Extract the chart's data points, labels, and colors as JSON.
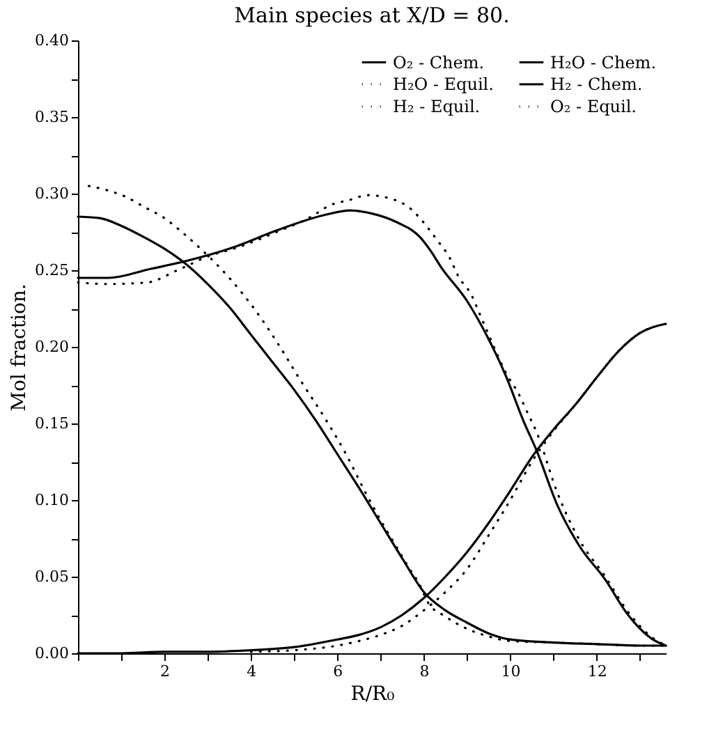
{
  "chart_data": {
    "type": "line",
    "title": "Main species at X/D = 80.",
    "xlabel": "R/R₀",
    "ylabel": "Mol fraction.",
    "xlim": [
      0,
      13.6
    ],
    "ylim": [
      0,
      0.4
    ],
    "xticks": [
      {
        "value": 0,
        "label": null
      },
      {
        "value": 1,
        "label": null
      },
      2,
      {
        "value": 3,
        "label": null
      },
      4,
      {
        "value": 5,
        "label": null
      },
      6,
      {
        "value": 7,
        "label": null
      },
      8,
      {
        "value": 9,
        "label": null
      },
      10,
      {
        "value": 11,
        "label": null
      },
      12,
      {
        "value": 13,
        "label": null
      }
    ],
    "yticks": [
      {
        "value": 0,
        "label": "0.00"
      },
      {
        "value": 0.025,
        "label": null
      },
      {
        "value": 0.05,
        "label": "0.05"
      },
      {
        "value": 0.075,
        "label": null
      },
      {
        "value": 0.1,
        "label": "0.10"
      },
      {
        "value": 0.125,
        "label": null
      },
      {
        "value": 0.15,
        "label": "0.15"
      },
      {
        "value": 0.175,
        "label": null
      },
      {
        "value": 0.2,
        "label": "0.20"
      },
      {
        "value": 0.225,
        "label": null
      },
      {
        "value": 0.25,
        "label": "0.25"
      },
      {
        "value": 0.275,
        "label": null
      },
      {
        "value": 0.3,
        "label": "0.30"
      },
      {
        "value": 0.325,
        "label": null
      },
      {
        "value": 0.35,
        "label": "0.35"
      },
      {
        "value": 0.375,
        "label": null
      },
      {
        "value": 0.4,
        "label": "0.40"
      }
    ],
    "grid": false,
    "legend": "top right",
    "series": [
      {
        "name": "O₂  - Chem.",
        "color": "#000000",
        "line_style": "solid",
        "x": [
          0,
          1,
          2,
          3,
          4,
          5,
          6,
          6.5,
          7,
          7.5,
          8,
          8.5,
          9,
          9.5,
          10,
          10.5,
          11,
          11.5,
          12,
          12.5,
          13,
          13.6
        ],
        "values": [
          0,
          0,
          0.001,
          0.001,
          0.002,
          0.004,
          0.009,
          0.012,
          0.017,
          0.025,
          0.036,
          0.05,
          0.066,
          0.085,
          0.106,
          0.128,
          0.146,
          0.162,
          0.18,
          0.197,
          0.209,
          0.215
        ]
      },
      {
        "name": "H₂O - Equil.",
        "color": "#000000",
        "line_style": "dotted",
        "x": [
          0,
          0.7,
          1.6,
          2.3,
          3.1,
          3.6,
          4.6,
          5.4,
          5.8,
          6.3,
          6.7,
          7.2,
          7.7,
          8,
          8.3,
          8.6,
          8.8,
          9.1,
          9.3,
          9.5,
          9.7,
          9.9,
          10.2,
          10.4,
          10.6,
          11.1,
          11.6,
          12.2,
          12.7,
          13.3,
          13.6
        ],
        "values": [
          0.242,
          0.241,
          0.242,
          0.25,
          0.26,
          0.264,
          0.275,
          0.285,
          0.292,
          0.296,
          0.299,
          0.297,
          0.29,
          0.281,
          0.27,
          0.258,
          0.246,
          0.234,
          0.221,
          0.208,
          0.195,
          0.183,
          0.169,
          0.157,
          0.145,
          0.104,
          0.074,
          0.05,
          0.028,
          0.01,
          0.005
        ]
      },
      {
        "name": "H₂  - Equil.",
        "color": "#000000",
        "line_style": "dotted",
        "x": [
          0.25,
          0.7,
          1.1,
          1.55,
          2,
          2.4,
          2.8,
          3.5,
          4.1,
          4.65,
          5.15,
          5.7,
          6.2,
          6.65,
          7.1,
          7.4,
          7.65,
          7.9,
          8.1,
          8.5,
          9,
          9.5,
          10,
          11,
          12,
          13,
          13.6
        ],
        "values": [
          0.305,
          0.302,
          0.298,
          0.291,
          0.284,
          0.275,
          0.265,
          0.245,
          0.224,
          0.201,
          0.178,
          0.154,
          0.13,
          0.105,
          0.082,
          0.068,
          0.056,
          0.045,
          0.033,
          0.024,
          0.016,
          0.011,
          0.008,
          0.007,
          0.006,
          0.005,
          0.005
        ]
      },
      {
        "name": "H₂O - Chem.",
        "color": "#000000",
        "line_style": "solid",
        "x": [
          0,
          0.7,
          1.7,
          2.5,
          3.6,
          4.6,
          5.7,
          6.3,
          6.8,
          7.4,
          7.9,
          8.15,
          8.4,
          9,
          9.5,
          9.9,
          10.3,
          10.6,
          11.1,
          11.6,
          12.2,
          12.7,
          13.3,
          13.6
        ],
        "values": [
          0.245,
          0.245,
          0.251,
          0.256,
          0.265,
          0.276,
          0.286,
          0.289,
          0.287,
          0.281,
          0.272,
          0.263,
          0.252,
          0.23,
          0.205,
          0.181,
          0.152,
          0.133,
          0.096,
          0.07,
          0.048,
          0.026,
          0.009,
          0.005
        ]
      },
      {
        "name": "H₂  - Chem.",
        "color": "#000000",
        "line_style": "solid",
        "x": [
          0,
          0.5,
          1,
          1.5,
          2,
          2.5,
          3,
          3.5,
          4,
          4.5,
          5,
          5.5,
          6,
          6.5,
          7,
          7.5,
          8,
          8.5,
          9,
          9.5,
          10,
          11,
          12,
          13,
          13.6
        ],
        "values": [
          0.285,
          0.284,
          0.279,
          0.272,
          0.264,
          0.254,
          0.241,
          0.226,
          0.208,
          0.19,
          0.172,
          0.152,
          0.13,
          0.108,
          0.085,
          0.062,
          0.04,
          0.028,
          0.02,
          0.013,
          0.009,
          0.007,
          0.006,
          0.005,
          0.005
        ]
      },
      {
        "name": "O₂  - Equil.",
        "color": "#000000",
        "line_style": "dotted",
        "x": [
          4,
          5,
          6,
          6.5,
          7,
          7.5,
          8,
          8.5,
          9,
          9.5,
          10,
          10.5,
          11,
          11.5,
          12,
          12.5,
          13,
          13.3
        ],
        "values": [
          0.001,
          0.002,
          0.005,
          0.008,
          0.012,
          0.018,
          0.028,
          0.04,
          0.055,
          0.077,
          0.1,
          0.125,
          0.145,
          0.162,
          0.18,
          0.197,
          0.209,
          0.213
        ]
      }
    ]
  }
}
